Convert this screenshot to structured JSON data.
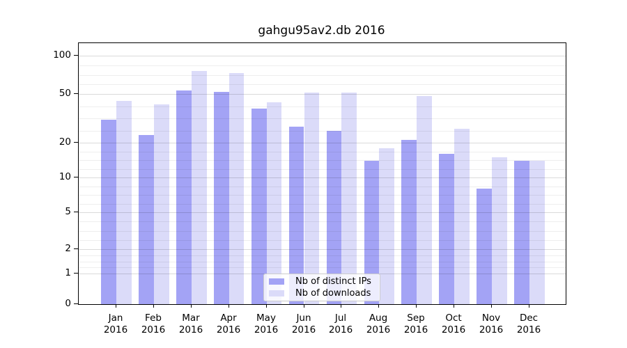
{
  "title": "gahgu95av2.db 2016",
  "colors": {
    "series": [
      "#a3a3f5",
      "#dbdbf9"
    ],
    "axis": "#000000",
    "grid_major": "#d9d9d9",
    "grid_minor": "#ededed",
    "legend_border": "#cccccc",
    "background": "#ffffff"
  },
  "legend": {
    "position": "bottom-center"
  },
  "chart_data": {
    "type": "bar",
    "title": "gahgu95av2.db 2016",
    "categories": [
      "Jan 2016",
      "Feb 2016",
      "Mar 2016",
      "Apr 2016",
      "May 2016",
      "Jun 2016",
      "Jul 2016",
      "Aug 2016",
      "Sep 2016",
      "Oct 2016",
      "Nov 2016",
      "Dec 2016"
    ],
    "series": [
      {
        "name": "Nb of distinct IPs",
        "values": [
          31,
          23,
          53,
          52,
          38,
          27,
          25,
          14,
          21,
          16,
          8,
          14
        ]
      },
      {
        "name": "Nb of downloads",
        "values": [
          44,
          41,
          76,
          73,
          43,
          51,
          51,
          18,
          48,
          26,
          15,
          14
        ]
      }
    ],
    "xlabel": "",
    "ylabel": "",
    "y_ticks": [
      0,
      1,
      2,
      5,
      10,
      20,
      50,
      100
    ],
    "y_scale": "log-like (0,1 linear then log)",
    "ylim": [
      0,
      130
    ],
    "grid": "horizontal major+minor, drawn over bars",
    "legend_position": "bottom-center inside plot"
  }
}
